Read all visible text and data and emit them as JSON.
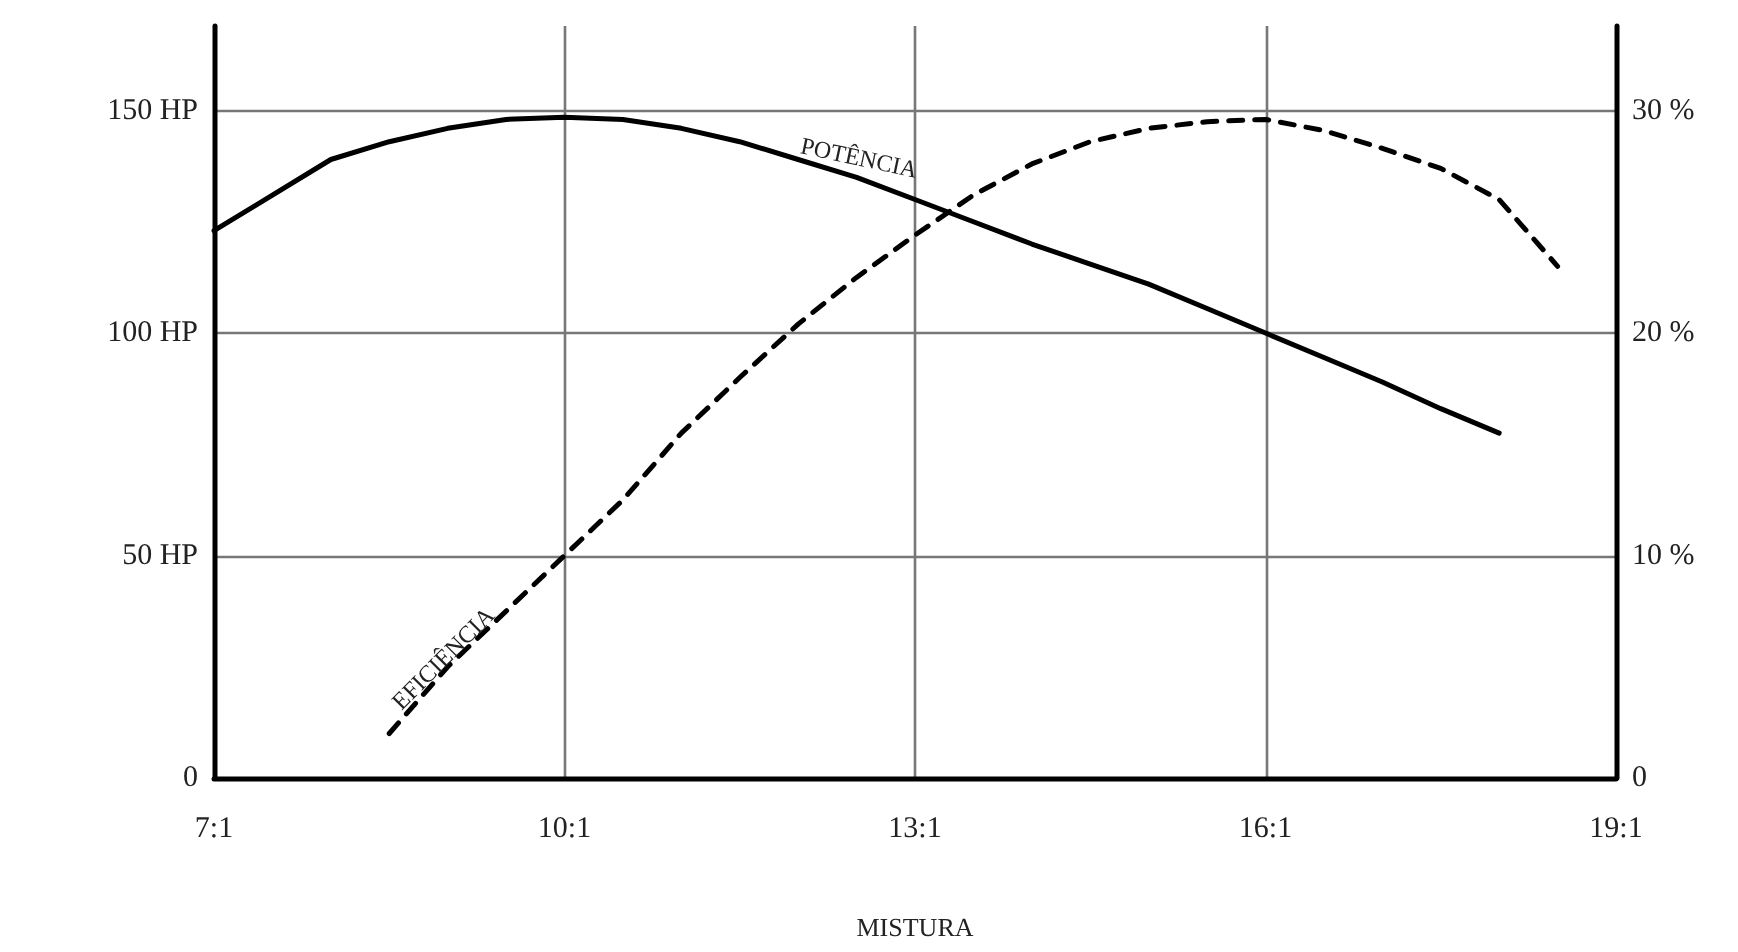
{
  "chart_data": {
    "type": "line",
    "xlabel": "MISTURA",
    "marker": "none",
    "grid": true,
    "legend": false,
    "categories": [
      "7:1",
      null,
      null,
      null,
      null,
      null,
      "10:1",
      null,
      null,
      null,
      null,
      null,
      "13:1",
      null,
      null,
      null,
      null,
      null,
      "16:1",
      null,
      null,
      null,
      null,
      null,
      "19:1"
    ],
    "ylim": [
      0,
      169
    ],
    "yticks": [
      0,
      {
        "value": 50,
        "label": "50 HP"
      },
      {
        "value": 100,
        "label": "100 HP"
      },
      {
        "value": 150,
        "label": "150 HP"
      }
    ],
    "y2lim": [
      0,
      33.8
    ],
    "y2ticks": [
      0,
      {
        "value": 10,
        "label": "10 %"
      },
      {
        "value": 20,
        "label": "20 %"
      },
      {
        "value": 30,
        "label": "30 %"
      }
    ],
    "series": [
      {
        "name": "POTÊNCIA",
        "color": "#000000",
        "line_style": "solid",
        "values": [
          123,
          131,
          139,
          143,
          146,
          148,
          148.5,
          148,
          146,
          143,
          139,
          135,
          130,
          125,
          120,
          115.5,
          111,
          105.5,
          100,
          94.5,
          89,
          83,
          77.5,
          null,
          null
        ]
      },
      {
        "name": "EFICIÊNCIA",
        "color": "#000000",
        "line_style": "dashed",
        "axis": "y2",
        "values": [
          null,
          null,
          null,
          2,
          5,
          7.5,
          10,
          12.5,
          15.5,
          18,
          20.4,
          22.5,
          24.4,
          26.2,
          27.6,
          28.6,
          29.2,
          29.5,
          29.6,
          29.1,
          28.3,
          27.4,
          26,
          23,
          null
        ]
      }
    ]
  }
}
